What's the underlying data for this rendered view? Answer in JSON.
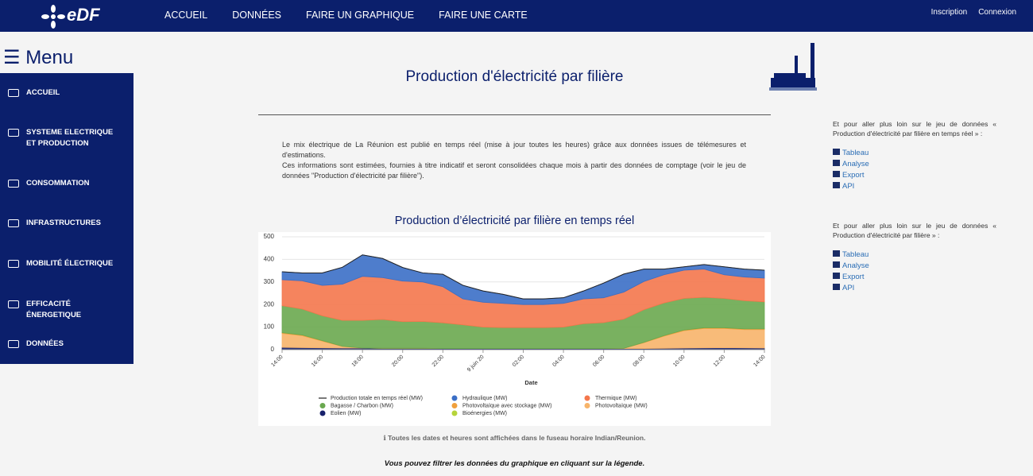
{
  "nav": {
    "logo": "eDF",
    "items": [
      "ACCUEIL",
      "DONNÉES",
      "FAIRE UN GRAPHIQUE",
      "FAIRE UNE CARTE"
    ],
    "account": [
      "Inscription",
      "Connexion"
    ]
  },
  "sidebar": {
    "title": "Menu",
    "items": [
      "ACCUEIL",
      "SYSTEME ELECTRIQUE ET PRODUCTION",
      "CONSOMMATION",
      "INFRASTRUCTURES",
      "MOBILITÉ ÉLECTRIQUE",
      "EFFICACITÉ ÉNERGETIQUE",
      "DONNÉES"
    ]
  },
  "page": {
    "title": "Production d'électricité par filière",
    "description": [
      "Le mix électrique de La Réunion est publié en temps réel (mise à jour toutes les heures) grâce aux données issues de télémesures et d'estimations.",
      "Ces informations sont estimées, fournies à titre indicatif et seront consolidées chaque mois à partir des données de comptage (voir le jeu de données \"Production d'électricité par filière\")."
    ],
    "timezone_note": "Toutes les dates et heures sont affichées dans le fuseau horaire Indian/Reunion.",
    "filter_note": "Vous pouvez filtrer les données du graphique en cliquant sur la légende."
  },
  "chart_data": {
    "type": "area",
    "stacked": true,
    "title": "Production d’électricité par filière en temps réel",
    "x_label": "Date",
    "categories": [
      "14:00",
      null,
      "16:00",
      null,
      "18:00",
      null,
      "20:00",
      null,
      "22:00",
      null,
      "9 juin 20",
      null,
      "02:00",
      null,
      "04:00",
      null,
      "06:00",
      null,
      "08:00",
      null,
      "10:00",
      null,
      "12:00",
      null,
      "14:00"
    ],
    "ylim": [
      0,
      500
    ],
    "yticks": [
      0,
      100,
      200,
      300,
      400,
      500
    ],
    "grid": true,
    "series": [
      {
        "name": "Production totale en temps réel (MW)",
        "type": "line",
        "color": "#222222",
        "values": [
          345,
          340,
          340,
          365,
          420,
          404,
          364,
          340,
          334,
          285,
          260,
          245,
          225,
          225,
          230,
          260,
          295,
          335,
          357,
          357,
          367,
          377,
          367,
          357,
          352
        ]
      },
      {
        "name": "Hydraulique (MW)",
        "type": "area",
        "color": "#3b6fc6",
        "values": [
          35,
          35,
          55,
          75,
          95,
          85,
          60,
          40,
          55,
          60,
          50,
          40,
          25,
          25,
          25,
          35,
          65,
          80,
          55,
          25,
          15,
          20,
          35,
          35,
          35
        ]
      },
      {
        "name": "Thermique (MW)",
        "type": "area",
        "color": "#f4774c",
        "values": [
          115,
          125,
          135,
          160,
          195,
          185,
          180,
          175,
          160,
          115,
          110,
          107,
          102,
          102,
          105,
          110,
          110,
          120,
          125,
          125,
          125,
          125,
          105,
          105,
          105
        ]
      },
      {
        "name": "Bagasse / Charbon (MW)",
        "type": "area",
        "color": "#6aa84f",
        "values": [
          120,
          115,
          110,
          115,
          123,
          128,
          118,
          119,
          114,
          105,
          95,
          93,
          93,
          93,
          95,
          110,
          115,
          129,
          145,
          145,
          140,
          135,
          130,
          125,
          120
        ]
      },
      {
        "name": "Photovoltaïque avec stockage (MW)",
        "type": "area",
        "color": "#f0a03c",
        "values": [
          3,
          3,
          2,
          1,
          0,
          0,
          0,
          0,
          0,
          0,
          0,
          0,
          0,
          0,
          0,
          0,
          0,
          0,
          1,
          2,
          3,
          3,
          3,
          3,
          3
        ]
      },
      {
        "name": "Photovoltaïque (MW)",
        "type": "area",
        "color": "#f7b46a",
        "values": [
          62,
          53,
          30,
          7,
          0,
          0,
          0,
          0,
          0,
          0,
          0,
          0,
          0,
          0,
          0,
          0,
          0,
          1,
          26,
          54,
          77,
          86,
          85,
          81,
          82
        ]
      },
      {
        "name": "Eolien (MW)",
        "type": "area",
        "color": "#17216b",
        "values": [
          8,
          7,
          6,
          5,
          5,
          4,
          4,
          4,
          3,
          3,
          3,
          3,
          3,
          3,
          3,
          3,
          3,
          3,
          3,
          4,
          5,
          6,
          7,
          6,
          5
        ]
      },
      {
        "name": "Bioénergies (MW)",
        "type": "area",
        "color": "#b6d43a",
        "values": [
          2,
          2,
          2,
          2,
          2,
          2,
          2,
          2,
          2,
          2,
          2,
          2,
          2,
          2,
          2,
          2,
          2,
          2,
          2,
          2,
          2,
          2,
          2,
          2,
          2
        ]
      }
    ]
  },
  "aside": [
    {
      "text": "Et pour aller plus loin sur le jeu de données « Production d'électricité par filière en temps réel » :",
      "links": [
        "Tableau",
        "Analyse",
        "Export",
        "API"
      ]
    },
    {
      "text": "Et pour aller plus loin sur le jeu de données « Production d'électricité par filière » :",
      "links": [
        "Tableau",
        "Analyse",
        "Export",
        "API"
      ]
    }
  ]
}
